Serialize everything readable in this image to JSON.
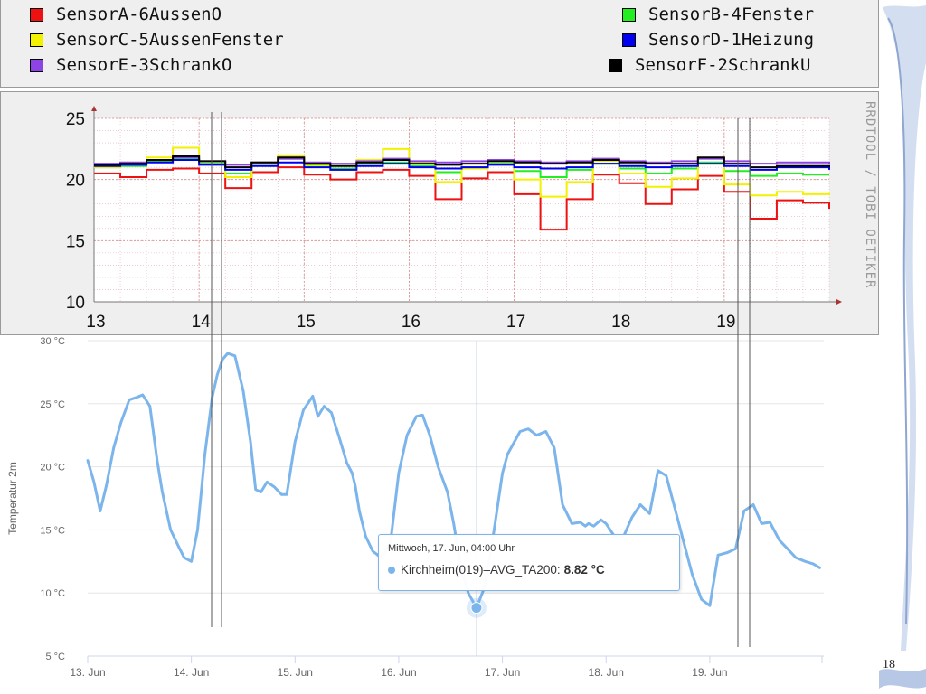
{
  "legend": {
    "items": [
      {
        "label": "SensorA-6AussenO",
        "color": "#ee1111"
      },
      {
        "label": "SensorB-4Fenster",
        "color": "#22ee22"
      },
      {
        "label": "SensorC-5AussenFenster",
        "color": "#f2f200"
      },
      {
        "label": "SensorD-1Heizung",
        "color": "#0000ee"
      },
      {
        "label": "SensorE-3SchrankO",
        "color": "#8e44e4"
      },
      {
        "label": "SensorF-2SchrankU",
        "color": "#000000"
      }
    ]
  },
  "rrd_credit": "RRDTOOL / TOBI OETIKER",
  "page_number": "18",
  "tooltip": {
    "header": "Mittwoch, 17. Jun, 04:00 Uhr",
    "series_label": "Kirchheim(019)–AVG_TA200:",
    "value": "8.82 °C"
  },
  "chart_data": [
    {
      "type": "line",
      "x": [
        13.0,
        13.25,
        13.5,
        13.75,
        14.0,
        14.25,
        14.5,
        14.75,
        15.0,
        15.25,
        15.5,
        15.75,
        16.0,
        16.25,
        16.5,
        16.75,
        17.0,
        17.25,
        17.5,
        17.75,
        18.0,
        18.25,
        18.5,
        18.75,
        19.0,
        19.25,
        19.5,
        19.75,
        20.0
      ],
      "xlim": [
        13,
        20
      ],
      "ylim": [
        10,
        25
      ],
      "x_ticks": [
        "13",
        "14",
        "15",
        "16",
        "17",
        "18",
        "19"
      ],
      "y_ticks": [
        "10",
        "15",
        "20",
        "25"
      ],
      "grid": true,
      "legend": "top",
      "series": [
        {
          "name": "SensorA-6AussenO",
          "color": "#ee1111",
          "values": [
            20.5,
            20.2,
            20.8,
            20.9,
            20.5,
            19.3,
            20.6,
            21.0,
            20.4,
            20.0,
            20.6,
            20.8,
            20.3,
            18.4,
            20.1,
            20.6,
            18.8,
            15.9,
            18.4,
            20.4,
            19.7,
            18.0,
            19.2,
            20.3,
            19.0,
            16.8,
            18.3,
            18.1,
            17.6
          ]
        },
        {
          "name": "SensorB-4Fenster",
          "color": "#22ee22",
          "values": [
            21.0,
            21.1,
            21.5,
            21.7,
            21.3,
            20.5,
            21.3,
            21.7,
            21.2,
            20.9,
            21.3,
            21.4,
            21.1,
            20.6,
            21.0,
            21.3,
            20.7,
            20.2,
            20.8,
            21.3,
            20.9,
            20.5,
            20.9,
            21.4,
            20.7,
            20.3,
            20.5,
            20.4,
            20.4
          ]
        },
        {
          "name": "SensorC-5AussenFenster",
          "color": "#f2f200",
          "values": [
            21.0,
            21.3,
            21.8,
            22.6,
            21.5,
            20.2,
            21.4,
            21.9,
            21.1,
            20.8,
            21.6,
            22.5,
            21.4,
            19.8,
            20.9,
            21.5,
            20.0,
            18.6,
            19.8,
            21.5,
            20.5,
            19.4,
            20.1,
            21.3,
            19.6,
            18.7,
            19.0,
            18.8,
            18.9
          ]
        },
        {
          "name": "SensorD-1Heizung",
          "color": "#0000ee",
          "values": [
            21.1,
            21.2,
            21.4,
            21.6,
            21.2,
            20.8,
            21.1,
            21.4,
            21.0,
            20.8,
            21.1,
            21.3,
            21.0,
            20.9,
            21.0,
            21.2,
            21.0,
            20.9,
            21.0,
            21.3,
            21.1,
            21.0,
            21.1,
            21.3,
            21.1,
            20.8,
            21.0,
            21.0,
            20.8
          ]
        },
        {
          "name": "SensorE-3SchrankO",
          "color": "#8e44e4",
          "values": [
            21.3,
            21.4,
            21.6,
            21.8,
            21.5,
            21.2,
            21.4,
            21.7,
            21.4,
            21.3,
            21.5,
            21.7,
            21.5,
            21.4,
            21.5,
            21.6,
            21.5,
            21.4,
            21.5,
            21.7,
            21.5,
            21.4,
            21.5,
            21.7,
            21.5,
            21.3,
            21.4,
            21.4,
            21.3
          ]
        },
        {
          "name": "SensorF-2SchrankU",
          "color": "#000000",
          "values": [
            21.2,
            21.3,
            21.6,
            21.9,
            21.5,
            21.0,
            21.4,
            21.8,
            21.3,
            21.1,
            21.4,
            21.6,
            21.3,
            21.2,
            21.3,
            21.5,
            21.4,
            21.3,
            21.4,
            21.6,
            21.4,
            21.3,
            21.3,
            21.8,
            21.3,
            21.0,
            21.1,
            21.1,
            21.0
          ]
        }
      ]
    },
    {
      "type": "line",
      "ylabel": "Temperatur 2m",
      "x_ticks": [
        "13. Jun",
        "14. Jun",
        "15. Jun",
        "16. Jun",
        "17. Jun",
        "18. Jun",
        "19. Jun"
      ],
      "y_ticks": [
        "5 °C",
        "10 °C",
        "15 °C",
        "20 °C",
        "25 °C",
        "30 °C"
      ],
      "xlim": [
        13,
        20.1
      ],
      "ylim": [
        5,
        30
      ],
      "series": [
        {
          "name": "Kirchheim(019)–AVG_TA200",
          "color": "#7cb5ec",
          "x": [
            13.0,
            13.06,
            13.12,
            13.18,
            13.25,
            13.32,
            13.4,
            13.47,
            13.53,
            13.6,
            13.67,
            13.72,
            13.8,
            13.87,
            13.93,
            14.0,
            14.06,
            14.13,
            14.2,
            14.25,
            14.3,
            14.35,
            14.42,
            14.5,
            14.57,
            14.62,
            14.67,
            14.73,
            14.8,
            14.87,
            14.92,
            15.0,
            15.08,
            15.17,
            15.22,
            15.28,
            15.35,
            15.42,
            15.5,
            15.55,
            15.58,
            15.62,
            15.68,
            15.75,
            15.83,
            15.92,
            16.0,
            16.08,
            16.17,
            16.23,
            16.3,
            16.38,
            16.47,
            16.53,
            16.6,
            16.67,
            16.75,
            16.83,
            16.92,
            17.0,
            17.05,
            17.17,
            17.25,
            17.33,
            17.42,
            17.5,
            17.58,
            17.67,
            17.75,
            17.8,
            17.83,
            17.88,
            17.95,
            18.0,
            18.08,
            18.17,
            18.25,
            18.33,
            18.42,
            18.5,
            18.58,
            18.67,
            18.75,
            18.83,
            18.92,
            19.0,
            19.08,
            19.17,
            19.25,
            19.33,
            19.42,
            19.5,
            19.58,
            19.67,
            19.75,
            19.83,
            19.92,
            20.0,
            20.06
          ],
          "values": [
            20.5,
            18.8,
            16.5,
            18.5,
            21.5,
            23.5,
            25.3,
            25.5,
            25.7,
            24.8,
            20.5,
            18.0,
            15.0,
            13.8,
            12.8,
            12.5,
            15.0,
            21.0,
            25.5,
            27.3,
            28.5,
            29.0,
            28.8,
            26.0,
            22.0,
            18.2,
            18.0,
            18.8,
            18.4,
            17.8,
            17.8,
            22.0,
            24.5,
            25.6,
            24.0,
            24.8,
            24.3,
            22.5,
            20.3,
            19.5,
            18.5,
            16.5,
            14.5,
            13.3,
            12.8,
            14.0,
            19.5,
            22.5,
            24.0,
            24.1,
            22.5,
            20.0,
            18.0,
            15.5,
            12.0,
            10.0,
            8.82,
            10.5,
            15.0,
            19.5,
            21.0,
            22.8,
            23.0,
            22.5,
            22.8,
            21.5,
            17.0,
            15.5,
            15.6,
            15.3,
            15.5,
            15.3,
            15.8,
            15.5,
            14.5,
            14.5,
            16.0,
            17.0,
            16.3,
            19.7,
            19.3,
            16.5,
            14.0,
            11.5,
            9.5,
            9.0,
            13.0,
            13.2,
            13.5,
            16.5,
            17.0,
            15.5,
            15.6,
            14.2,
            13.5,
            12.8,
            12.5,
            12.3,
            12.0
          ]
        }
      ]
    }
  ]
}
